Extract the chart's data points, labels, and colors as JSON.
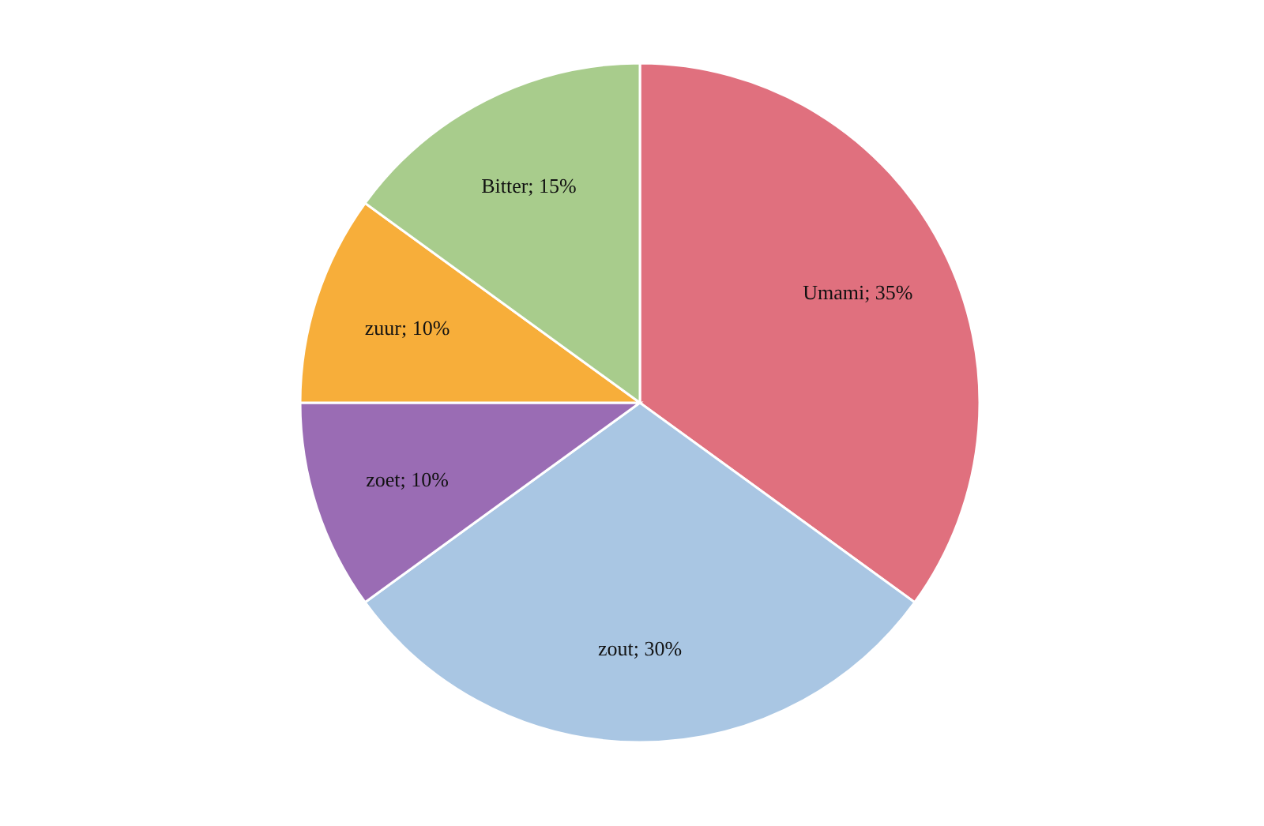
{
  "chart_data": {
    "type": "pie",
    "categories": [
      "Umami",
      "zout",
      "zoet",
      "zuur",
      "Bitter"
    ],
    "values": [
      35,
      30,
      10,
      10,
      15
    ],
    "colors": [
      "#e0707e",
      "#a9c6e3",
      "#9a6cb4",
      "#f7ae3a",
      "#a8cc8c"
    ],
    "value_labels": [
      "; 35%",
      "; 30%",
      "; 10%",
      "; 10%",
      "; 15%"
    ],
    "legend": false
  }
}
